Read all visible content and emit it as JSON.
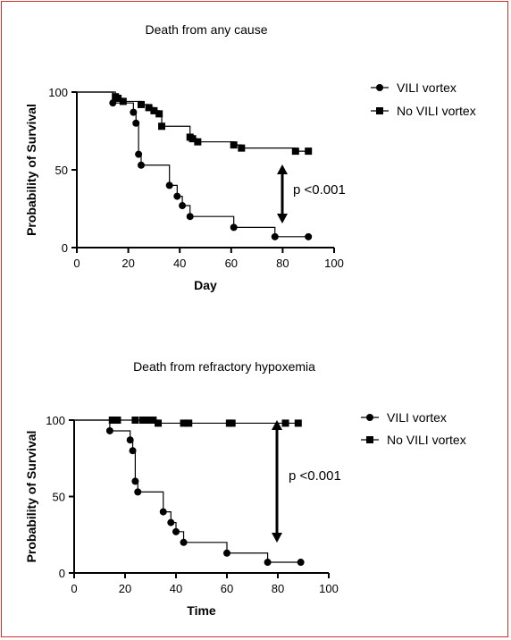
{
  "chart_data": [
    {
      "type": "line",
      "subtype": "kaplan-meier",
      "title": "Death from any cause",
      "xlabel": "Day",
      "ylabel": "Probability of Survival",
      "xlim": [
        0,
        100
      ],
      "ylim": [
        0,
        100
      ],
      "xticks": [
        0,
        20,
        40,
        60,
        80,
        100
      ],
      "yticks": [
        0,
        50,
        100
      ],
      "grid": false,
      "legend_position": "right",
      "series": [
        {
          "name": "VILI vortex",
          "marker": "circle",
          "color": "#000000",
          "points": [
            [
              0,
              100
            ],
            [
              14,
              93
            ],
            [
              22,
              87
            ],
            [
              23,
              80
            ],
            [
              24,
              60
            ],
            [
              25,
              53
            ],
            [
              36,
              40
            ],
            [
              39,
              33
            ],
            [
              41,
              27
            ],
            [
              44,
              20
            ],
            [
              61,
              13
            ],
            [
              77,
              7
            ],
            [
              90,
              7
            ]
          ]
        },
        {
          "name": "No VILI vortex",
          "marker": "square",
          "color": "#000000",
          "points": [
            [
              0,
              100
            ],
            [
              15,
              97
            ],
            [
              16,
              96
            ],
            [
              18,
              94
            ],
            [
              25,
              92
            ],
            [
              28,
              90
            ],
            [
              30,
              88
            ],
            [
              32,
              86
            ],
            [
              33,
              78
            ],
            [
              44,
              71
            ],
            [
              45,
              70
            ],
            [
              47,
              68
            ],
            [
              61,
              66
            ],
            [
              64,
              64
            ],
            [
              85,
              62
            ],
            [
              90,
              62
            ]
          ]
        }
      ],
      "annotation": "p <0.001"
    },
    {
      "type": "line",
      "subtype": "kaplan-meier",
      "title": "Death from refractory hypoxemia",
      "xlabel": "Time",
      "ylabel": "Probability of Survival",
      "xlim": [
        0,
        100
      ],
      "ylim": [
        0,
        100
      ],
      "xticks": [
        0,
        20,
        40,
        60,
        80,
        100
      ],
      "yticks": [
        0,
        50,
        100
      ],
      "grid": false,
      "legend_position": "right",
      "series": [
        {
          "name": "VILI vortex",
          "marker": "circle",
          "color": "#000000",
          "points": [
            [
              0,
              100
            ],
            [
              14,
              93
            ],
            [
              22,
              87
            ],
            [
              23,
              80
            ],
            [
              24,
              60
            ],
            [
              25,
              53
            ],
            [
              35,
              40
            ],
            [
              38,
              33
            ],
            [
              40,
              27
            ],
            [
              43,
              20
            ],
            [
              60,
              13
            ],
            [
              76,
              7
            ],
            [
              89,
              7
            ]
          ]
        },
        {
          "name": "No VILI vortex",
          "marker": "square",
          "color": "#000000",
          "points": [
            [
              0,
              100
            ],
            [
              15,
              100
            ],
            [
              16,
              100
            ],
            [
              17,
              100
            ],
            [
              24,
              100
            ],
            [
              27,
              100
            ],
            [
              29,
              100
            ],
            [
              31,
              100
            ],
            [
              33,
              98
            ],
            [
              43,
              98
            ],
            [
              45,
              98
            ],
            [
              61,
              98
            ],
            [
              62,
              98
            ],
            [
              83,
              98
            ],
            [
              88,
              98
            ]
          ]
        }
      ],
      "annotation": "p <0.001"
    }
  ]
}
